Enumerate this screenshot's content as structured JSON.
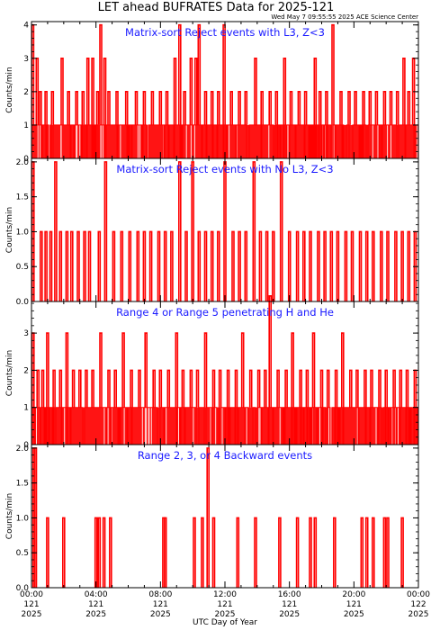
{
  "header": {
    "title": "LET ahead BUFRATES Data for 2025-121",
    "timestamp": "Wed May  7 09:55:55 2025 ACE Science Center"
  },
  "colors": {
    "trace": "#ff0000",
    "panel_title": "#1a1aff",
    "axis": "#000000"
  },
  "xaxis": {
    "label": "UTC Day of Year",
    "range_hours": [
      0,
      24
    ],
    "ticks": [
      {
        "time": "00:00",
        "doy": "121",
        "year": "2025"
      },
      {
        "time": "04:00",
        "doy": "121",
        "year": "2025"
      },
      {
        "time": "08:00",
        "doy": "121",
        "year": "2025"
      },
      {
        "time": "12:00",
        "doy": "121",
        "year": "2025"
      },
      {
        "time": "16:00",
        "doy": "121",
        "year": "2025"
      },
      {
        "time": "20:00",
        "doy": "121",
        "year": "2025"
      },
      {
        "time": "00:00",
        "doy": "122",
        "year": "2025"
      }
    ]
  },
  "chart_data": [
    {
      "type": "line",
      "title": "Matrix-sort Reject events with L3, Z<3",
      "ylabel": "Counts/min",
      "ylim": [
        0,
        4.1
      ],
      "yticks": [
        "0",
        "1",
        "2",
        "3",
        "4"
      ],
      "typical_level": 1,
      "spikes": [
        {
          "x": 0.08,
          "y": 4
        },
        {
          "x": 0.35,
          "y": 3
        },
        {
          "x": 0.55,
          "y": 2
        },
        {
          "x": 0.9,
          "y": 2
        },
        {
          "x": 1.3,
          "y": 2
        },
        {
          "x": 1.9,
          "y": 3
        },
        {
          "x": 2.3,
          "y": 2
        },
        {
          "x": 2.8,
          "y": 2
        },
        {
          "x": 3.2,
          "y": 2
        },
        {
          "x": 3.5,
          "y": 3
        },
        {
          "x": 3.8,
          "y": 3
        },
        {
          "x": 4.1,
          "y": 2
        },
        {
          "x": 4.3,
          "y": 4
        },
        {
          "x": 4.55,
          "y": 3
        },
        {
          "x": 4.8,
          "y": 2
        },
        {
          "x": 5.3,
          "y": 2
        },
        {
          "x": 5.9,
          "y": 2
        },
        {
          "x": 6.5,
          "y": 2
        },
        {
          "x": 7.0,
          "y": 2
        },
        {
          "x": 7.5,
          "y": 2
        },
        {
          "x": 8.0,
          "y": 2
        },
        {
          "x": 8.4,
          "y": 2
        },
        {
          "x": 8.9,
          "y": 3
        },
        {
          "x": 9.2,
          "y": 4
        },
        {
          "x": 9.5,
          "y": 2
        },
        {
          "x": 9.9,
          "y": 3
        },
        {
          "x": 10.2,
          "y": 3
        },
        {
          "x": 10.4,
          "y": 4
        },
        {
          "x": 10.8,
          "y": 2
        },
        {
          "x": 11.2,
          "y": 2
        },
        {
          "x": 11.6,
          "y": 2
        },
        {
          "x": 11.95,
          "y": 4
        },
        {
          "x": 12.4,
          "y": 2
        },
        {
          "x": 12.9,
          "y": 2
        },
        {
          "x": 13.3,
          "y": 2
        },
        {
          "x": 13.9,
          "y": 3
        },
        {
          "x": 14.3,
          "y": 2
        },
        {
          "x": 14.8,
          "y": 2
        },
        {
          "x": 15.2,
          "y": 2
        },
        {
          "x": 15.7,
          "y": 3
        },
        {
          "x": 16.1,
          "y": 2
        },
        {
          "x": 16.6,
          "y": 2
        },
        {
          "x": 17.0,
          "y": 2
        },
        {
          "x": 17.6,
          "y": 3
        },
        {
          "x": 17.9,
          "y": 2
        },
        {
          "x": 18.3,
          "y": 2
        },
        {
          "x": 18.7,
          "y": 4
        },
        {
          "x": 19.2,
          "y": 2
        },
        {
          "x": 19.7,
          "y": 2
        },
        {
          "x": 20.1,
          "y": 2
        },
        {
          "x": 20.6,
          "y": 2
        },
        {
          "x": 21.0,
          "y": 2
        },
        {
          "x": 21.4,
          "y": 2
        },
        {
          "x": 21.9,
          "y": 2
        },
        {
          "x": 22.3,
          "y": 2
        },
        {
          "x": 22.7,
          "y": 2
        },
        {
          "x": 23.1,
          "y": 3
        },
        {
          "x": 23.4,
          "y": 2
        },
        {
          "x": 23.7,
          "y": 3
        }
      ]
    },
    {
      "type": "line",
      "title": "Matrix-sort Reject events with No L3, Z<3",
      "ylabel": "Counts/min",
      "ylim": [
        0,
        2.05
      ],
      "yticks": [
        "0.0",
        "0.5",
        "1.0",
        "1.5",
        "2.0"
      ],
      "typical_level": 0,
      "spikes": [
        {
          "x": 0.1,
          "y": 2
        },
        {
          "x": 0.6,
          "y": 1
        },
        {
          "x": 0.9,
          "y": 1
        },
        {
          "x": 1.2,
          "y": 1
        },
        {
          "x": 1.5,
          "y": 2
        },
        {
          "x": 1.8,
          "y": 1
        },
        {
          "x": 2.2,
          "y": 1
        },
        {
          "x": 2.5,
          "y": 1
        },
        {
          "x": 2.9,
          "y": 1
        },
        {
          "x": 3.3,
          "y": 1
        },
        {
          "x": 3.6,
          "y": 1
        },
        {
          "x": 4.2,
          "y": 1
        },
        {
          "x": 4.6,
          "y": 2
        },
        {
          "x": 5.1,
          "y": 1
        },
        {
          "x": 5.6,
          "y": 1
        },
        {
          "x": 6.1,
          "y": 1
        },
        {
          "x": 6.6,
          "y": 1
        },
        {
          "x": 7.0,
          "y": 1
        },
        {
          "x": 7.4,
          "y": 1
        },
        {
          "x": 7.9,
          "y": 1
        },
        {
          "x": 8.3,
          "y": 1
        },
        {
          "x": 8.7,
          "y": 1
        },
        {
          "x": 9.2,
          "y": 2
        },
        {
          "x": 9.6,
          "y": 1
        },
        {
          "x": 10.0,
          "y": 2
        },
        {
          "x": 10.4,
          "y": 1
        },
        {
          "x": 10.8,
          "y": 1
        },
        {
          "x": 11.2,
          "y": 1
        },
        {
          "x": 11.6,
          "y": 1
        },
        {
          "x": 12.0,
          "y": 2
        },
        {
          "x": 12.5,
          "y": 1
        },
        {
          "x": 12.9,
          "y": 1
        },
        {
          "x": 13.3,
          "y": 1
        },
        {
          "x": 13.8,
          "y": 2
        },
        {
          "x": 14.2,
          "y": 1
        },
        {
          "x": 14.6,
          "y": 1
        },
        {
          "x": 15.0,
          "y": 1
        },
        {
          "x": 15.5,
          "y": 2
        },
        {
          "x": 16.0,
          "y": 1
        },
        {
          "x": 16.5,
          "y": 1
        },
        {
          "x": 16.9,
          "y": 1
        },
        {
          "x": 17.3,
          "y": 1
        },
        {
          "x": 17.8,
          "y": 1
        },
        {
          "x": 18.2,
          "y": 1
        },
        {
          "x": 18.6,
          "y": 1
        },
        {
          "x": 19.0,
          "y": 1
        },
        {
          "x": 19.5,
          "y": 1
        },
        {
          "x": 19.9,
          "y": 1
        },
        {
          "x": 20.4,
          "y": 1
        },
        {
          "x": 20.8,
          "y": 1
        },
        {
          "x": 21.2,
          "y": 1
        },
        {
          "x": 21.7,
          "y": 1
        },
        {
          "x": 22.1,
          "y": 1
        },
        {
          "x": 22.6,
          "y": 1
        },
        {
          "x": 23.0,
          "y": 1
        },
        {
          "x": 23.4,
          "y": 1
        },
        {
          "x": 23.8,
          "y": 1
        }
      ]
    },
    {
      "type": "line",
      "title": "Range 4 or Range 5 penetrating H and He",
      "ylabel": "Counts/min",
      "ylim": [
        0,
        3.85
      ],
      "yticks": [
        "0",
        "1",
        "2",
        "3"
      ],
      "typical_level": 1,
      "spikes": [
        {
          "x": 0.1,
          "y": 3
        },
        {
          "x": 0.4,
          "y": 2
        },
        {
          "x": 0.7,
          "y": 2
        },
        {
          "x": 1.0,
          "y": 3
        },
        {
          "x": 1.4,
          "y": 2
        },
        {
          "x": 1.8,
          "y": 2
        },
        {
          "x": 2.2,
          "y": 3
        },
        {
          "x": 2.6,
          "y": 2
        },
        {
          "x": 3.0,
          "y": 2
        },
        {
          "x": 3.4,
          "y": 2
        },
        {
          "x": 3.8,
          "y": 2
        },
        {
          "x": 4.3,
          "y": 3
        },
        {
          "x": 4.8,
          "y": 2
        },
        {
          "x": 5.2,
          "y": 2
        },
        {
          "x": 5.7,
          "y": 3
        },
        {
          "x": 6.2,
          "y": 2
        },
        {
          "x": 6.7,
          "y": 2
        },
        {
          "x": 7.1,
          "y": 3
        },
        {
          "x": 7.6,
          "y": 2
        },
        {
          "x": 8.0,
          "y": 2
        },
        {
          "x": 8.5,
          "y": 2
        },
        {
          "x": 9.0,
          "y": 3
        },
        {
          "x": 9.4,
          "y": 2
        },
        {
          "x": 9.9,
          "y": 2
        },
        {
          "x": 10.3,
          "y": 2
        },
        {
          "x": 10.8,
          "y": 3
        },
        {
          "x": 11.3,
          "y": 2
        },
        {
          "x": 11.7,
          "y": 2
        },
        {
          "x": 12.2,
          "y": 2
        },
        {
          "x": 12.7,
          "y": 2
        },
        {
          "x": 13.1,
          "y": 3
        },
        {
          "x": 13.6,
          "y": 2
        },
        {
          "x": 14.1,
          "y": 2
        },
        {
          "x": 14.5,
          "y": 2
        },
        {
          "x": 14.8,
          "y": 4
        },
        {
          "x": 15.3,
          "y": 2
        },
        {
          "x": 15.8,
          "y": 2
        },
        {
          "x": 16.2,
          "y": 3
        },
        {
          "x": 16.7,
          "y": 2
        },
        {
          "x": 17.1,
          "y": 2
        },
        {
          "x": 17.5,
          "y": 3
        },
        {
          "x": 18.0,
          "y": 2
        },
        {
          "x": 18.4,
          "y": 2
        },
        {
          "x": 18.9,
          "y": 2
        },
        {
          "x": 19.3,
          "y": 3
        },
        {
          "x": 19.8,
          "y": 2
        },
        {
          "x": 20.2,
          "y": 2
        },
        {
          "x": 20.7,
          "y": 2
        },
        {
          "x": 21.1,
          "y": 2
        },
        {
          "x": 21.6,
          "y": 2
        },
        {
          "x": 22.0,
          "y": 2
        },
        {
          "x": 22.5,
          "y": 2
        },
        {
          "x": 22.9,
          "y": 2
        },
        {
          "x": 23.3,
          "y": 2
        },
        {
          "x": 23.8,
          "y": 2
        }
      ]
    },
    {
      "type": "line",
      "title": "Range 2, 3, or 4 Backward events",
      "ylabel": "Counts/min",
      "ylim": [
        0,
        2.05
      ],
      "yticks": [
        "0.0",
        "0.5",
        "1.0",
        "1.5",
        "2.0"
      ],
      "typical_level": 0,
      "spikes": [
        {
          "x": 0.15,
          "y": 2
        },
        {
          "x": 0.25,
          "y": 2
        },
        {
          "x": 1.0,
          "y": 1
        },
        {
          "x": 2.0,
          "y": 1
        },
        {
          "x": 4.0,
          "y": 1
        },
        {
          "x": 4.2,
          "y": 1
        },
        {
          "x": 4.5,
          "y": 1
        },
        {
          "x": 4.9,
          "y": 1
        },
        {
          "x": 8.2,
          "y": 1
        },
        {
          "x": 8.3,
          "y": 1
        },
        {
          "x": 10.1,
          "y": 1
        },
        {
          "x": 10.6,
          "y": 1
        },
        {
          "x": 10.95,
          "y": 2
        },
        {
          "x": 11.3,
          "y": 1
        },
        {
          "x": 12.8,
          "y": 1
        },
        {
          "x": 13.9,
          "y": 1
        },
        {
          "x": 15.4,
          "y": 1
        },
        {
          "x": 16.5,
          "y": 1
        },
        {
          "x": 17.3,
          "y": 1
        },
        {
          "x": 17.6,
          "y": 1
        },
        {
          "x": 18.8,
          "y": 1
        },
        {
          "x": 20.5,
          "y": 1
        },
        {
          "x": 20.8,
          "y": 1
        },
        {
          "x": 21.2,
          "y": 1
        },
        {
          "x": 21.9,
          "y": 1
        },
        {
          "x": 22.1,
          "y": 1
        },
        {
          "x": 23.0,
          "y": 1
        }
      ]
    }
  ]
}
